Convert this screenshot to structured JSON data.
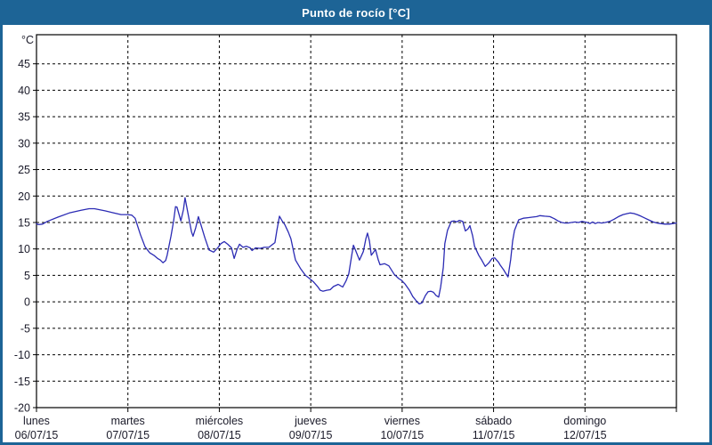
{
  "window": {
    "title": "Punto de rocío [°C]"
  },
  "colors": {
    "titlebar_bg": "#1d6496",
    "page_border": "#1d6496",
    "title_text": "#ffffff",
    "line": "#2b2bb4",
    "grid": "#000000",
    "frame": "#000000",
    "axis_text": "#1b1b2a",
    "plot_bg": "#ffffff"
  },
  "chart_data": {
    "type": "line",
    "title": "Punto de rocío [°C]",
    "ylabel": "°C",
    "ylim": [
      -20,
      50.5
    ],
    "yticks": [
      45,
      40,
      35,
      30,
      25,
      20,
      15,
      10,
      5,
      0,
      -5,
      -10,
      -15,
      -20
    ],
    "grid": true,
    "legend_position": "none",
    "x_axis": {
      "unit": "hours_since_monday_00h",
      "range_hours": [
        0,
        168
      ],
      "day_tick_hours": [
        0,
        24,
        48,
        72,
        96,
        120,
        144,
        168
      ],
      "days": [
        {
          "weekday": "lunes",
          "date": "06/07/15"
        },
        {
          "weekday": "martes",
          "date": "07/07/15"
        },
        {
          "weekday": "miércoles",
          "date": "08/07/15"
        },
        {
          "weekday": "jueves",
          "date": "09/07/15"
        },
        {
          "weekday": "viernes",
          "date": "10/07/15"
        },
        {
          "weekday": "sábado",
          "date": "11/07/15"
        },
        {
          "weekday": "domingo",
          "date": "12/07/15"
        }
      ]
    },
    "series": [
      {
        "name": "Punto de rocío",
        "color": "#2b2bb4",
        "points_hours_celsius": [
          [
            0,
            14.8
          ],
          [
            0.5,
            14.6
          ],
          [
            1.6,
            14.7
          ],
          [
            2.8,
            15.2
          ],
          [
            5.6,
            16.0
          ],
          [
            8.6,
            16.8
          ],
          [
            11.7,
            17.3
          ],
          [
            13.8,
            17.6
          ],
          [
            15.2,
            17.6
          ],
          [
            18,
            17.2
          ],
          [
            20.3,
            16.8
          ],
          [
            22.2,
            16.5
          ],
          [
            23.8,
            16.5
          ],
          [
            25,
            16.4
          ],
          [
            25.9,
            15.8
          ],
          [
            27.3,
            12.7
          ],
          [
            28.5,
            10.4
          ],
          [
            29.7,
            9.3
          ],
          [
            30.8,
            8.8
          ],
          [
            31.8,
            8.2
          ],
          [
            32.5,
            7.9
          ],
          [
            33.2,
            7.4
          ],
          [
            33.9,
            7.8
          ],
          [
            34.3,
            8.8
          ],
          [
            35.3,
            12.4
          ],
          [
            36,
            15.3
          ],
          [
            36.5,
            18
          ],
          [
            36.9,
            17.9
          ],
          [
            37.9,
            15.3
          ],
          [
            38.6,
            17.5
          ],
          [
            39,
            19.7
          ],
          [
            39.7,
            17
          ],
          [
            40.7,
            13.2
          ],
          [
            41.1,
            12.4
          ],
          [
            41.8,
            14
          ],
          [
            42.5,
            16.1
          ],
          [
            43.2,
            14.5
          ],
          [
            44.2,
            12.1
          ],
          [
            45.3,
            9.8
          ],
          [
            46.5,
            9.4
          ],
          [
            47.7,
            10.3
          ],
          [
            48.4,
            11
          ],
          [
            49.3,
            11.4
          ],
          [
            50.2,
            10.9
          ],
          [
            51.2,
            10.2
          ],
          [
            51.9,
            8.2
          ],
          [
            52.6,
            9.8
          ],
          [
            53.3,
            10.9
          ],
          [
            54.2,
            10.3
          ],
          [
            55.1,
            10.5
          ],
          [
            56.1,
            10.2
          ],
          [
            56.6,
            9.7
          ],
          [
            57.5,
            10.2
          ],
          [
            58.7,
            10.1
          ],
          [
            59.8,
            10.3
          ],
          [
            61,
            10.3
          ],
          [
            61.9,
            10.8
          ],
          [
            62.6,
            11.2
          ],
          [
            63.1,
            13.5
          ],
          [
            63.8,
            16.2
          ],
          [
            64.5,
            15.3
          ],
          [
            65.2,
            14.6
          ],
          [
            66.1,
            13.2
          ],
          [
            66.8,
            11.9
          ],
          [
            67.5,
            9.5
          ],
          [
            68,
            7.9
          ],
          [
            69.4,
            6.2
          ],
          [
            70.6,
            5
          ],
          [
            71.7,
            4.4
          ],
          [
            72.7,
            3.8
          ],
          [
            73.8,
            2.9
          ],
          [
            74.5,
            2.2
          ],
          [
            75.2,
            2
          ],
          [
            76.2,
            2.2
          ],
          [
            77.1,
            2.3
          ],
          [
            78,
            2.9
          ],
          [
            79.2,
            3.3
          ],
          [
            80.4,
            2.8
          ],
          [
            81.3,
            4
          ],
          [
            82,
            5.3
          ],
          [
            82.7,
            8.5
          ],
          [
            83.2,
            10.7
          ],
          [
            83.9,
            9.5
          ],
          [
            84.8,
            7.9
          ],
          [
            85.8,
            9.5
          ],
          [
            86.5,
            12
          ],
          [
            86.9,
            13
          ],
          [
            87.4,
            11.5
          ],
          [
            87.9,
            8.8
          ],
          [
            88.6,
            9.5
          ],
          [
            89,
            9.9
          ],
          [
            89.7,
            8
          ],
          [
            90.2,
            7
          ],
          [
            91.4,
            7.2
          ],
          [
            92.5,
            6.8
          ],
          [
            93.9,
            5.2
          ],
          [
            95.1,
            4.4
          ],
          [
            95.8,
            4.1
          ],
          [
            96.7,
            3.4
          ],
          [
            97.9,
            2.2
          ],
          [
            98.8,
            1
          ],
          [
            99.8,
            0.1
          ],
          [
            100.5,
            -0.4
          ],
          [
            101.2,
            -0.2
          ],
          [
            102.1,
            1.2
          ],
          [
            102.8,
            1.9
          ],
          [
            103.5,
            2
          ],
          [
            104.2,
            1.8
          ],
          [
            104.9,
            1.2
          ],
          [
            105.6,
            0.9
          ],
          [
            106.1,
            2.8
          ],
          [
            106.8,
            6.5
          ],
          [
            107.2,
            11
          ],
          [
            107.9,
            13.5
          ],
          [
            108.9,
            15.2
          ],
          [
            109.6,
            15.3
          ],
          [
            110.3,
            15.1
          ],
          [
            111,
            15.4
          ],
          [
            111.9,
            15.2
          ],
          [
            112.6,
            13.4
          ],
          [
            113.3,
            13.8
          ],
          [
            113.8,
            14.4
          ],
          [
            114.5,
            12.5
          ],
          [
            115,
            10.5
          ],
          [
            116.1,
            8.8
          ],
          [
            116.8,
            8
          ],
          [
            117.8,
            6.7
          ],
          [
            118.7,
            7.3
          ],
          [
            119.6,
            8.2
          ],
          [
            120.3,
            8.3
          ],
          [
            121.3,
            7.5
          ],
          [
            121.7,
            7
          ],
          [
            122.7,
            6
          ],
          [
            123.1,
            5.5
          ],
          [
            123.8,
            4.7
          ],
          [
            124.5,
            8
          ],
          [
            125,
            11.5
          ],
          [
            125.5,
            13.5
          ],
          [
            126.2,
            14.8
          ],
          [
            126.6,
            15.5
          ],
          [
            127.8,
            15.8
          ],
          [
            129,
            15.9
          ],
          [
            130.1,
            16
          ],
          [
            131.3,
            16.1
          ],
          [
            132.2,
            16.3
          ],
          [
            133.4,
            16.2
          ],
          [
            134.8,
            16.1
          ],
          [
            136,
            15.7
          ],
          [
            136.9,
            15.3
          ],
          [
            137.9,
            15
          ],
          [
            138.8,
            14.9
          ],
          [
            139.5,
            14.9
          ],
          [
            140.4,
            15
          ],
          [
            141.4,
            15.1
          ],
          [
            142.3,
            15
          ],
          [
            143.2,
            15.2
          ],
          [
            143.9,
            15.1
          ],
          [
            144.6,
            15
          ],
          [
            145.3,
            14.8
          ],
          [
            146,
            15.1
          ],
          [
            146.7,
            14.8
          ],
          [
            147.4,
            15
          ],
          [
            148.4,
            14.9
          ],
          [
            149.3,
            15
          ],
          [
            150.5,
            15.2
          ],
          [
            151.6,
            15.6
          ],
          [
            152.8,
            16.1
          ],
          [
            154,
            16.5
          ],
          [
            155.2,
            16.7
          ],
          [
            155.9,
            16.8
          ],
          [
            156.8,
            16.7
          ],
          [
            157.7,
            16.5
          ],
          [
            158.7,
            16.2
          ],
          [
            159.8,
            15.8
          ],
          [
            161,
            15.4
          ],
          [
            161.9,
            15.1
          ],
          [
            162.9,
            14.9
          ],
          [
            163.8,
            14.8
          ],
          [
            165,
            14.7
          ],
          [
            166.1,
            14.7
          ],
          [
            167.1,
            14.8
          ],
          [
            168,
            14.9
          ]
        ]
      }
    ]
  }
}
